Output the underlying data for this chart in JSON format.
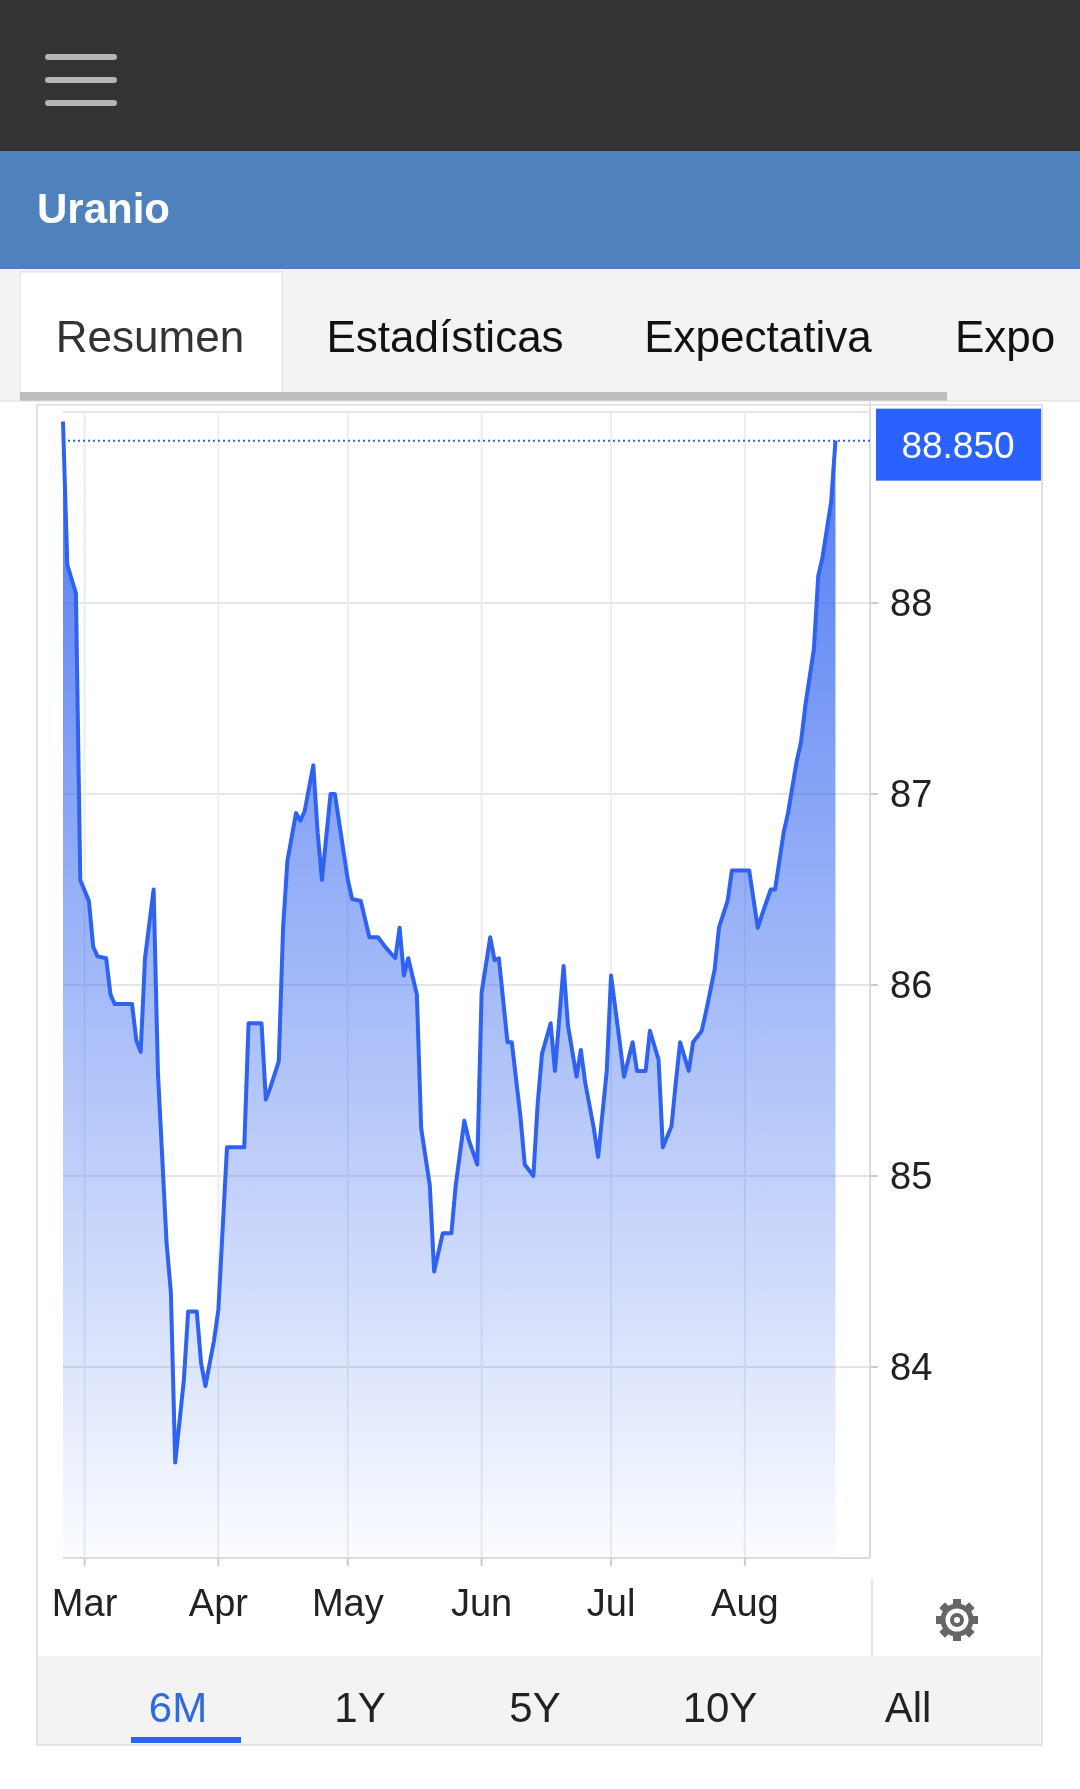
{
  "chart_data": {
    "type": "area",
    "title": "Uranio",
    "annotations": [
      "Resumen",
      "Estadísticas",
      "Expectativa",
      "Expo",
      "6M",
      "1Y",
      "5Y",
      "10Y",
      "All"
    ],
    "x": [
      "--02-24",
      "--02-25",
      "--02-27",
      "--02-28",
      "--03-02",
      "--03-03",
      "--03-04",
      "--03-06",
      "--03-07",
      "--03-08",
      "--03-12",
      "--03-13",
      "--03-14",
      "--03-15",
      "--03-17",
      "--03-18",
      "--03-20",
      "--03-21",
      "--03-22",
      "--03-24",
      "--03-25",
      "--03-27",
      "--03-28",
      "--03-29",
      "--03-31",
      "--04-01",
      "--04-03",
      "--04-07",
      "--04-08",
      "--04-11",
      "--04-12",
      "--04-13",
      "--04-15",
      "--04-16",
      "--04-17",
      "--04-19",
      "--04-20",
      "--04-21",
      "--04-23",
      "--04-24",
      "--04-25",
      "--04-27",
      "--04-28",
      "--04-29",
      "--05-01",
      "--05-02",
      "--05-04",
      "--05-06",
      "--05-08",
      "--05-10",
      "--05-12",
      "--05-13",
      "--05-14",
      "--05-15",
      "--05-17",
      "--05-18",
      "--05-20",
      "--05-21",
      "--05-23",
      "--05-25",
      "--05-26",
      "--05-28",
      "--05-29",
      "--05-31",
      "--06-01",
      "--06-03",
      "--06-04",
      "--06-05",
      "--06-07",
      "--06-08",
      "--06-10",
      "--06-11",
      "--06-13",
      "--06-14",
      "--06-15",
      "--06-17",
      "--06-18",
      "--06-20",
      "--06-21",
      "--06-23",
      "--06-24",
      "--06-25",
      "--06-27",
      "--06-28",
      "--06-30",
      "--07-01",
      "--07-03",
      "--07-04",
      "--07-06",
      "--07-07",
      "--07-09",
      "--07-10",
      "--07-12",
      "--07-13",
      "--07-15",
      "--07-16",
      "--07-17",
      "--07-19",
      "--07-20",
      "--07-22",
      "--07-23",
      "--07-25",
      "--07-26",
      "--07-28",
      "--07-29",
      "--08-02",
      "--08-04",
      "--08-05",
      "--08-07",
      "--08-08",
      "--08-10",
      "--08-11",
      "--08-13",
      "--08-14",
      "--08-15",
      "--08-17",
      "--08-18",
      "--08-19",
      "--08-21",
      "--08-22"
    ],
    "series": [
      {
        "color": "#2f62f0",
        "values": [
          88.95,
          88.2,
          88.05,
          86.55,
          86.44,
          86.2,
          86.15,
          86.14,
          85.95,
          85.9,
          85.9,
          85.71,
          85.65,
          86.14,
          86.5,
          85.54,
          84.65,
          84.39,
          83.5,
          83.93,
          84.29,
          84.29,
          84.02,
          83.9,
          84.14,
          84.3,
          85.15,
          85.15,
          85.8,
          85.8,
          85.4,
          85.46,
          85.6,
          86.3,
          86.65,
          86.9,
          86.86,
          86.91,
          87.15,
          86.8,
          86.55,
          87.0,
          87.0,
          86.85,
          86.55,
          86.45,
          86.44,
          86.25,
          86.25,
          86.19,
          86.14,
          86.3,
          86.05,
          86.14,
          85.95,
          85.25,
          84.95,
          84.5,
          84.7,
          84.7,
          84.95,
          85.29,
          85.19,
          85.06,
          85.96,
          86.25,
          86.13,
          86.14,
          85.7,
          85.7,
          85.31,
          85.06,
          85.0,
          85.38,
          85.64,
          85.8,
          85.55,
          86.1,
          85.79,
          85.52,
          85.66,
          85.49,
          85.25,
          85.1,
          85.55,
          86.05,
          85.7,
          85.52,
          85.7,
          85.55,
          85.55,
          85.76,
          85.61,
          85.15,
          85.26,
          85.49,
          85.7,
          85.55,
          85.7,
          85.76,
          85.86,
          86.08,
          86.3,
          86.44,
          86.6,
          86.6,
          86.3,
          86.37,
          86.5,
          86.5,
          86.8,
          86.9,
          87.17,
          87.27,
          87.46,
          87.76,
          88.14,
          88.24,
          88.53,
          88.85
        ]
      }
    ],
    "xlim": [
      "--02-24",
      "--08-30"
    ],
    "xticks": [
      {
        "value": "--03-01",
        "label": "Mar"
      },
      {
        "value": "--04-01",
        "label": "Apr"
      },
      {
        "value": "--05-01",
        "label": "May"
      },
      {
        "value": "--06-01",
        "label": "Jun"
      },
      {
        "value": "--07-01",
        "label": "Jul"
      },
      {
        "value": "--08-01",
        "label": "Aug"
      }
    ],
    "ylim": [
      83,
      89
    ],
    "yticks": [
      84,
      85,
      86,
      87,
      88
    ],
    "grid": true,
    "ref_lines": [
      {
        "axis": "y",
        "value": 88.85,
        "label": "88.850",
        "color": "#2962ff",
        "line_style": "dotted"
      }
    ]
  }
}
